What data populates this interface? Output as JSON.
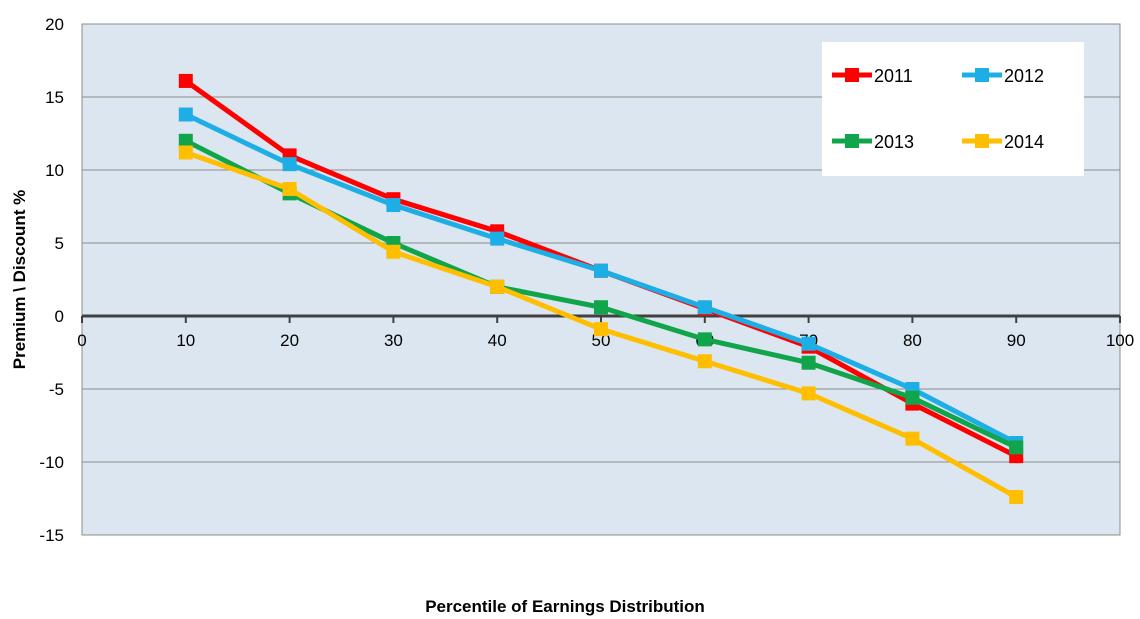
{
  "chart_data": {
    "type": "line",
    "title": "",
    "xlabel": "Percentile of Earnings Distribution",
    "ylabel": "Premium \\ Discount %",
    "xlim": [
      0,
      100
    ],
    "ylim": [
      -15,
      20
    ],
    "x_ticks": [
      0,
      10,
      20,
      30,
      40,
      50,
      60,
      70,
      80,
      90,
      100
    ],
    "y_ticks": [
      20,
      15,
      10,
      5,
      0,
      -5,
      -10,
      -15
    ],
    "grid": "horizontal",
    "legend_position": "top-right",
    "x": [
      10,
      20,
      30,
      40,
      50,
      60,
      70,
      80,
      90
    ],
    "series": [
      {
        "name": "2011",
        "color": "#ff0000",
        "values": [
          16.1,
          11.0,
          8.0,
          5.8,
          3.1,
          0.5,
          -2.1,
          -6.0,
          -9.6
        ]
      },
      {
        "name": "2012",
        "color": "#1eaee6",
        "values": [
          13.8,
          10.4,
          7.6,
          5.3,
          3.1,
          0.6,
          -1.9,
          -5.0,
          -8.7
        ]
      },
      {
        "name": "2013",
        "color": "#10a54a",
        "values": [
          12.0,
          8.4,
          5.0,
          2.0,
          0.6,
          -1.6,
          -3.2,
          -5.6,
          -9.0
        ]
      },
      {
        "name": "2014",
        "color": "#ffbe00",
        "values": [
          11.2,
          8.7,
          4.4,
          2.0,
          -0.9,
          -3.1,
          -5.3,
          -8.4,
          -12.4
        ]
      }
    ]
  }
}
